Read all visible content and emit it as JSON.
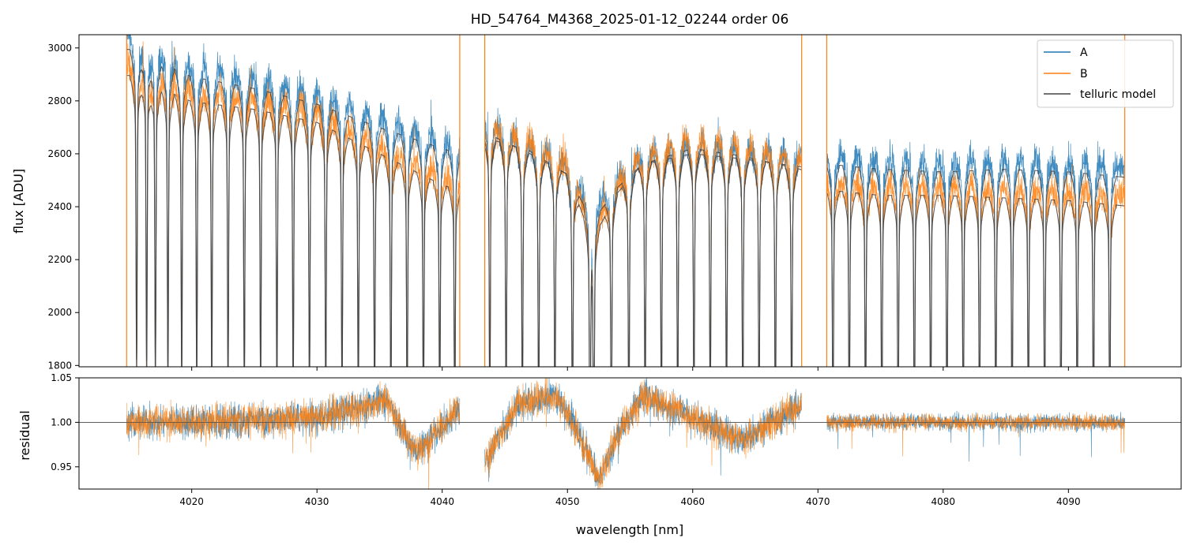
{
  "chart_data": [
    {
      "type": "line",
      "panel": "top",
      "title": "HD_54764_M4368_2025-01-12_02244  order 06",
      "xlabel": "",
      "ylabel": "flux [ADU]",
      "xlim": [
        4011,
        4099
      ],
      "ylim": [
        1795,
        3050
      ],
      "xticks": [
        4020,
        4030,
        4040,
        4050,
        4060,
        4070,
        4080,
        4090
      ],
      "yticks": [
        1800,
        2000,
        2200,
        2400,
        2600,
        2800,
        3000
      ],
      "ytick_labels": [
        "1800",
        "2000",
        "2200",
        "2400",
        "2600",
        "2800",
        "3000"
      ],
      "x_range": [
        4014.8,
        4094.5
      ],
      "gaps": [
        [
          4041.4,
          4043.4
        ],
        [
          4068.7,
          4070.7
        ]
      ],
      "telluric_lines_nm": [
        4015.6,
        4016.4,
        4017.1,
        4018.1,
        4019.2,
        4020.4,
        4021.6,
        4022.9,
        4024.2,
        4025.5,
        4026.8,
        4028.1,
        4029.4,
        4030.7,
        4032.0,
        4033.3,
        4034.6,
        4035.9,
        4037.2,
        4038.5,
        4039.8,
        4041.0,
        4043.8,
        4045.1,
        4046.4,
        4047.7,
        4049.0,
        4050.4,
        4051.8,
        4052.1,
        4053.5,
        4054.9,
        4056.2,
        4057.5,
        4058.8,
        4060.1,
        4061.4,
        4062.7,
        4064.0,
        4065.3,
        4066.6,
        4067.9,
        4071.2,
        4072.5,
        4073.8,
        4075.1,
        4076.4,
        4077.7,
        4079.0,
        4080.3,
        4081.6,
        4082.9,
        4084.2,
        4085.5,
        4086.8,
        4088.1,
        4089.4,
        4090.7,
        4092.0,
        4093.3
      ],
      "series": [
        {
          "name": "A",
          "color": "#1f77b4",
          "anchors_x": [
            4015,
            4020,
            4025,
            4030,
            4035,
            4040,
            4041.3,
            4043.5,
            4047,
            4050,
            4052,
            4054,
            4056,
            4060,
            4064,
            4068.6,
            4070.8,
            4075,
            4080,
            4085,
            4090,
            4094.4
          ],
          "anchors_flux": [
            3040,
            2935,
            2890,
            2830,
            2740,
            2660,
            2640,
            2720,
            2640,
            2560,
            2380,
            2510,
            2600,
            2640,
            2620,
            2590,
            2600,
            2580,
            2570,
            2580,
            2570,
            2550
          ]
        },
        {
          "name": "B",
          "color": "#ff7f0e",
          "anchors_x": [
            4015,
            4020,
            4025,
            4030,
            4035,
            4040,
            4041.3,
            4043.5,
            4047,
            4050,
            4052,
            4054,
            4056,
            4060,
            4064,
            4068.6,
            4070.8,
            4075,
            4080,
            4085,
            4090,
            4094.4
          ],
          "anchors_flux": [
            2940,
            2840,
            2810,
            2760,
            2640,
            2520,
            2500,
            2700,
            2650,
            2560,
            2310,
            2490,
            2600,
            2660,
            2630,
            2580,
            2500,
            2480,
            2480,
            2470,
            2460,
            2440
          ]
        },
        {
          "name": "telluric model",
          "color": "#444444"
        }
      ]
    },
    {
      "type": "line",
      "panel": "bottom",
      "xlabel": "wavelength [nm]",
      "ylabel": "residual",
      "xlim": [
        4011,
        4099
      ],
      "ylim": [
        0.925,
        1.05
      ],
      "xticks": [
        4020,
        4030,
        4040,
        4050,
        4060,
        4070,
        4080,
        4090
      ],
      "xtick_labels": [
        "4020",
        "4030",
        "4040",
        "4050",
        "4060",
        "4070",
        "4080",
        "4090"
      ],
      "yticks": [
        0.95,
        1.0,
        1.05
      ],
      "ytick_labels": [
        "0.95",
        "1.00",
        "1.05"
      ],
      "reference_line": 1.0,
      "trend_anchors_x": [
        4014.8,
        4020,
        4030,
        4034,
        4035.5,
        4038,
        4041.3,
        4043.4,
        4046,
        4049,
        4050.5,
        4052.5,
        4054,
        4056,
        4060,
        4064,
        4068.7,
        4070.7,
        4094.5
      ],
      "trend_anchors_y": [
        1.0,
        1.0,
        1.005,
        1.018,
        1.025,
        0.965,
        1.015,
        0.955,
        1.02,
        1.03,
        1.0,
        0.935,
        0.985,
        1.03,
        1.005,
        0.98,
        1.02,
        1.0,
        1.0
      ]
    }
  ],
  "legend": {
    "position": "upper right",
    "items": [
      {
        "label": "A",
        "color": "#1f77b4"
      },
      {
        "label": "B",
        "color": "#ff7f0e"
      },
      {
        "label": "telluric model",
        "color": "#444444"
      }
    ]
  }
}
